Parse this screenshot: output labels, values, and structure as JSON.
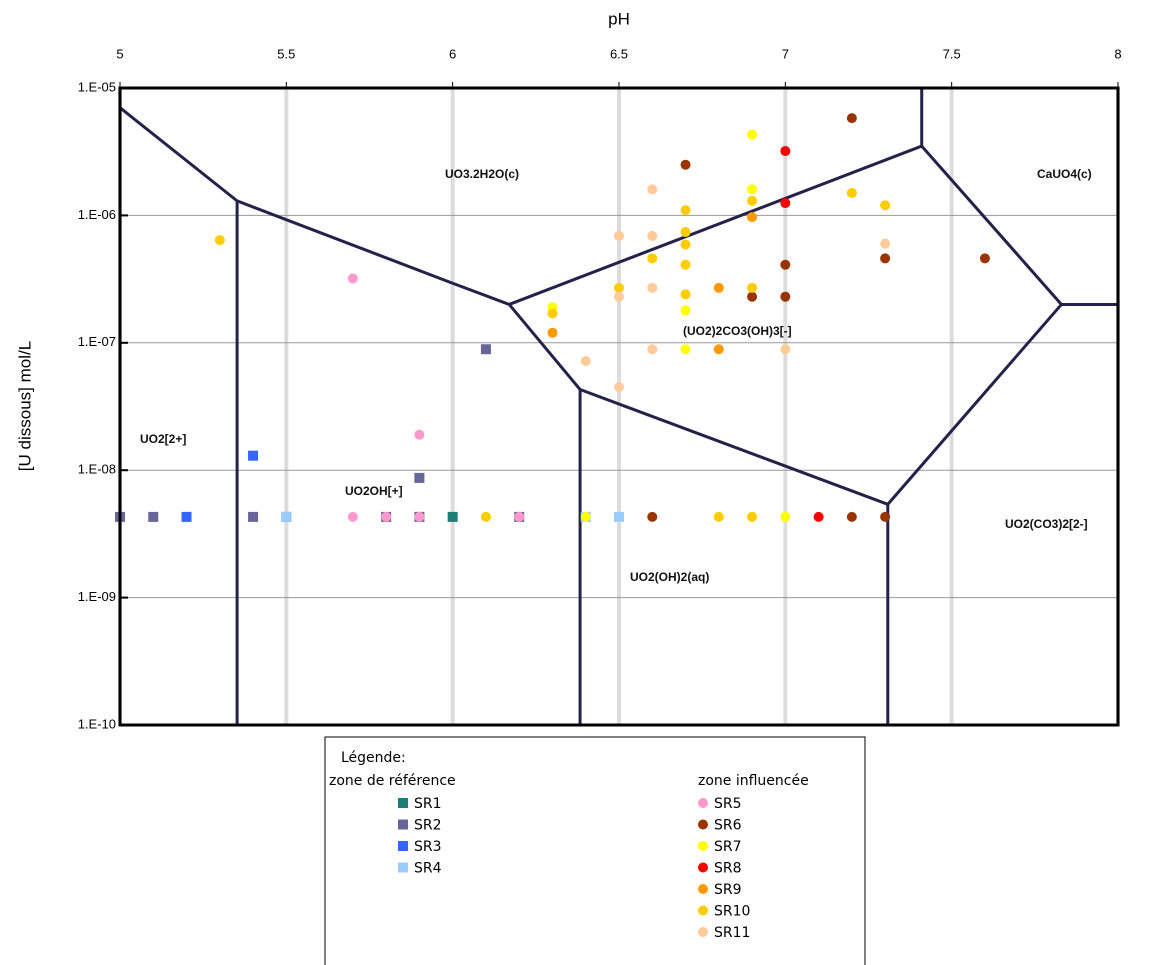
{
  "chart_data": {
    "type": "scatter",
    "xlabel": "pH",
    "ylabel": "[U dissous] mol/L",
    "x_axis_position": "top",
    "log_y": true,
    "xlim": [
      5,
      8
    ],
    "xticks": [
      5,
      5.5,
      6,
      6.5,
      7,
      7.5,
      8
    ],
    "ylim": [
      1e-10,
      1e-05
    ],
    "yticks": [
      {
        "value": 1e-10,
        "label": "1.E-10"
      },
      {
        "value": 1e-09,
        "label": "1.E-09"
      },
      {
        "value": 1e-08,
        "label": "1.E-08"
      },
      {
        "value": 1e-07,
        "label": "1.E-07"
      },
      {
        "value": 1e-06,
        "label": "1.E-06"
      },
      {
        "value": 1e-05,
        "label": "1.E-05"
      }
    ],
    "grid": true,
    "regions": [
      "UO3.2H2O(c)",
      "CaUO4(c)",
      "(UO2)2CO3(OH)3[-]",
      "UO2[2+]",
      "UO2OH[+]",
      "UO2(OH)2(aq)",
      "UO2(CO3)2[2-]"
    ],
    "boundary_color": "#22224a",
    "boundaries": [
      {
        "x": [
          5,
          5.352,
          5.99,
          6.17,
          6.383,
          7.308,
          7.83,
          8
        ],
        "y": [
          7e-06,
          1.3e-06,
          3e-07,
          2e-07,
          4.3e-08,
          5.4e-09,
          2e-07,
          2e-07
        ]
      },
      {
        "x": [
          6.17,
          7.41,
          7.83
        ],
        "y": [
          2e-07,
          3.5e-06,
          2e-07
        ]
      },
      {
        "x": [
          7.41,
          7.41
        ],
        "y": [
          1e-05,
          3.5e-06
        ]
      },
      {
        "x": [
          5.352,
          5.352
        ],
        "y": [
          1.3e-06,
          1e-10
        ]
      },
      {
        "x": [
          6.383,
          6.383
        ],
        "y": [
          4.3e-08,
          1e-10
        ]
      },
      {
        "x": [
          7.308,
          7.308
        ],
        "y": [
          5.4e-09,
          1e-10
        ]
      }
    ],
    "legend_title": "Légende:",
    "groups": [
      {
        "name": "zone de référence",
        "marker": "square",
        "series": [
          {
            "name": "SR1",
            "color": "#1a7f74",
            "x": [
              6.0
            ],
            "y": [
              4.3e-09
            ]
          },
          {
            "name": "SR2",
            "color": "#666699",
            "x": [
              5.0,
              5.1,
              5.4,
              5.5,
              5.8,
              5.9,
              6.2,
              6.1,
              5.9
            ],
            "y": [
              4.3e-09,
              4.3e-09,
              4.3e-09,
              4.3e-09,
              4.3e-09,
              4.3e-09,
              4.3e-09,
              8.9e-08,
              8.7e-09
            ]
          },
          {
            "name": "SR3",
            "color": "#3366ff",
            "x": [
              5.2,
              5.4
            ],
            "y": [
              4.3e-09,
              1.3e-08
            ]
          },
          {
            "name": "SR4",
            "color": "#99ccff",
            "x": [
              5.5,
              6.4,
              6.5
            ],
            "y": [
              4.3e-09,
              4.3e-09,
              4.3e-09
            ]
          }
        ]
      },
      {
        "name": "zone influencée",
        "marker": "circle",
        "series": [
          {
            "name": "SR5",
            "color": "#ff99cc",
            "x": [
              5.7,
              5.8,
              5.9,
              6.2,
              5.7,
              5.9
            ],
            "y": [
              4.3e-09,
              4.3e-09,
              4.3e-09,
              4.3e-09,
              3.2e-07,
              1.9e-08
            ]
          },
          {
            "name": "SR6",
            "color": "#993300",
            "x": [
              6.6,
              7.2,
              7.3,
              7.2,
              6.7,
              7.3,
              7.6,
              7.0,
              6.9,
              7.0
            ],
            "y": [
              4.3e-09,
              4.3e-09,
              4.3e-09,
              5.8e-06,
              2.5e-06,
              4.6e-07,
              4.6e-07,
              4.1e-07,
              2.3e-07,
              2.3e-07
            ]
          },
          {
            "name": "SR7",
            "color": "#ffff00",
            "x": [
              6.4,
              6.8,
              6.9,
              7.0,
              6.9,
              6.9,
              6.7,
              6.3,
              6.7
            ],
            "y": [
              4.3e-09,
              4.3e-09,
              4.3e-09,
              4.3e-09,
              4.3e-06,
              1.6e-06,
              1.8e-07,
              1.9e-07,
              8.9e-08
            ]
          },
          {
            "name": "SR8",
            "color": "#ff0000",
            "x": [
              7.1,
              7.0,
              7.0
            ],
            "y": [
              4.3e-09,
              3.2e-06,
              1.25e-06
            ]
          },
          {
            "name": "SR9",
            "color": "#ff9900",
            "x": [
              6.9,
              6.8,
              6.3,
              6.8
            ],
            "y": [
              9.7e-07,
              2.7e-07,
              1.2e-07,
              8.9e-08
            ]
          },
          {
            "name": "SR10",
            "color": "#ffcc00",
            "x": [
              6.1,
              6.8,
              6.9,
              5.3,
              7.3,
              7.2,
              6.9,
              6.7,
              6.7,
              6.7,
              6.6,
              6.7,
              6.7,
              6.3,
              6.5,
              6.9
            ],
            "y": [
              4.3e-09,
              4.3e-09,
              4.3e-09,
              6.4e-07,
              1.2e-06,
              1.5e-06,
              1.3e-06,
              1.1e-06,
              7.4e-07,
              5.9e-07,
              4.6e-07,
              4.1e-07,
              2.4e-07,
              1.7e-07,
              2.7e-07,
              2.7e-07
            ]
          },
          {
            "name": "SR11",
            "color": "#ffcc99",
            "x": [
              6.6,
              6.5,
              6.6,
              6.6,
              6.5,
              7.3,
              6.6,
              6.4,
              6.5,
              7.0
            ],
            "y": [
              1.6e-06,
              6.9e-07,
              6.9e-07,
              2.7e-07,
              2.3e-07,
              6e-07,
              8.9e-08,
              7.2e-08,
              4.5e-08,
              8.9e-08
            ]
          }
        ]
      }
    ]
  }
}
